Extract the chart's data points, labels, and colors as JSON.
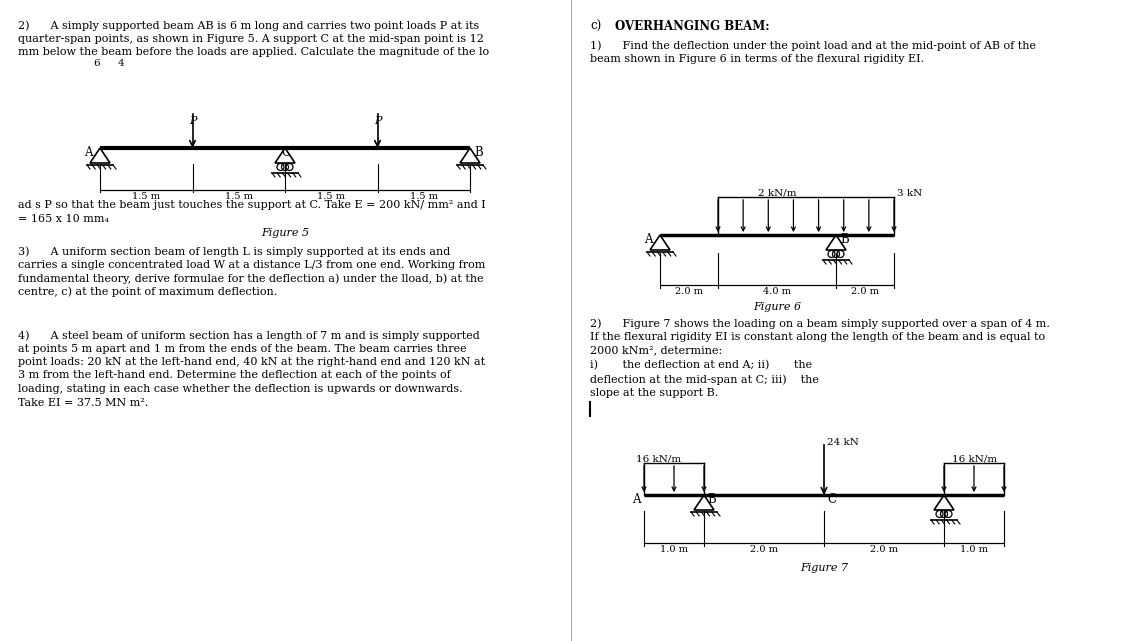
{
  "bg_color": "#ffffff",
  "left_col": {
    "q2_text": [
      "2)      A simply supported beam AB is 6 m long and carries two point loads P at its",
      "quarter-span points, as shown in Figure 5. A support C at the mid-span point is 12",
      "mm below the beam before the loads are applied. Calculate the magnitude of the lo"
    ],
    "ads_text": [
      "ad s P so that the beam just touches the support at C. Take E = 200 kN/ mm² and I",
      "= 165 x 10 mm₄"
    ],
    "fig5_label": "Figure 5",
    "q3_text": [
      "3)      A uniform section beam of length L is simply supported at its ends and",
      "carries a single concentrated load W at a distance L/3 from one end. Working from",
      "fundamental theory, derive formulae for the deflection a) under the lload, b) at the",
      "centre, c) at the point of maximum deflection."
    ],
    "q4_text": [
      "4)      A steel beam of uniform section has a length of 7 m and is simply supported",
      "at points 5 m apart and 1 m from the ends of the beam. The beam carries three",
      "point loads: 20 kN at the left-hand end, 40 kN at the right-hand end and 120 kN at",
      "3 m from the left-hand end. Determine the deflection at each of the points of",
      "loading, stating in each case whether the deflection is upwards or downwards.",
      "Take EI = 37.5 MN m²."
    ]
  },
  "right_col": {
    "c_heading_num": "c)",
    "c_heading_text": "OVERHANGING BEAM:",
    "q1_text": [
      "1)      Find the deflection under the point load and at the mid-point of AB of the",
      "beam shown in Figure 6 in terms of the flexural rigidity EI."
    ],
    "fig6_label": "Figure 6",
    "q2_text": [
      "2)      Figure 7 shows the loading on a beam simply supported over a span of 4 m.",
      "If the flexural rigidity EI is constant along the length of the beam and is equal to",
      "2000 kNm², determine:"
    ],
    "q2_sub1": "i)       the deflection at end A; ii)       the",
    "q2_sub2": "deflection at the mid-span at C; iii)    the",
    "q2_sub3": "slope at the support B.",
    "fig7_label": "Figure 7"
  }
}
